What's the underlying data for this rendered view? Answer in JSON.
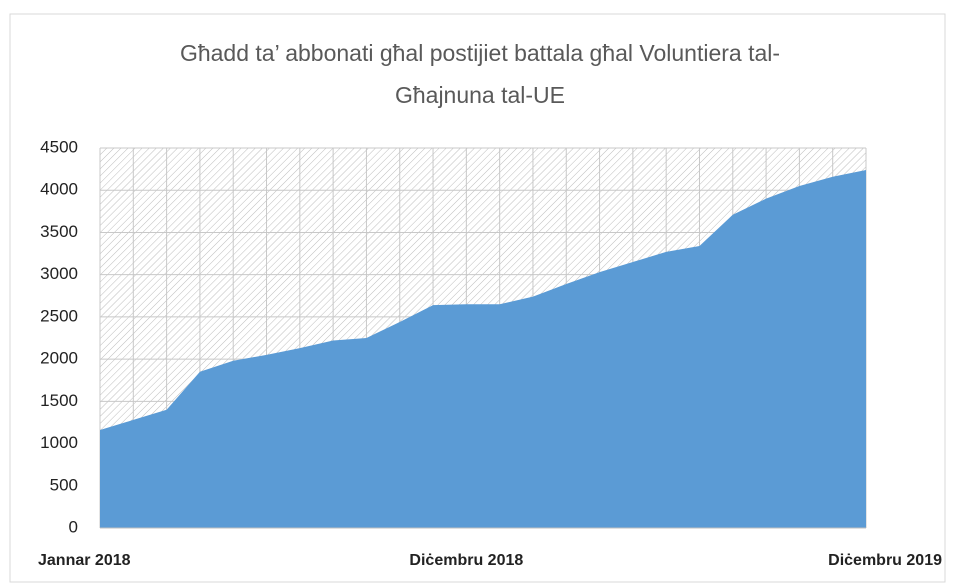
{
  "chart_data": {
    "type": "area",
    "title": [
      "Għadd ta’ abbonati għal postijiet battala għal Voluntiera tal-",
      "Għajnuna tal-UE"
    ],
    "categories": [
      "Jannar 2018",
      null,
      null,
      null,
      null,
      null,
      null,
      null,
      null,
      null,
      null,
      "Diċembru 2018",
      null,
      null,
      null,
      null,
      null,
      null,
      null,
      null,
      null,
      null,
      null,
      "Diċembru 2019"
    ],
    "values": [
      1160,
      1280,
      1400,
      1850,
      1980,
      2050,
      2130,
      2220,
      2250,
      2440,
      2640,
      2650,
      2650,
      2740,
      2890,
      3030,
      3150,
      3270,
      3340,
      3710,
      3900,
      4050,
      4160,
      4240
    ],
    "color": "#5b9bd5",
    "ylim": [
      0,
      4500
    ],
    "yticks": [
      0,
      500,
      1000,
      1500,
      2000,
      2500,
      3000,
      3500,
      4000,
      4500
    ],
    "grid": true
  }
}
